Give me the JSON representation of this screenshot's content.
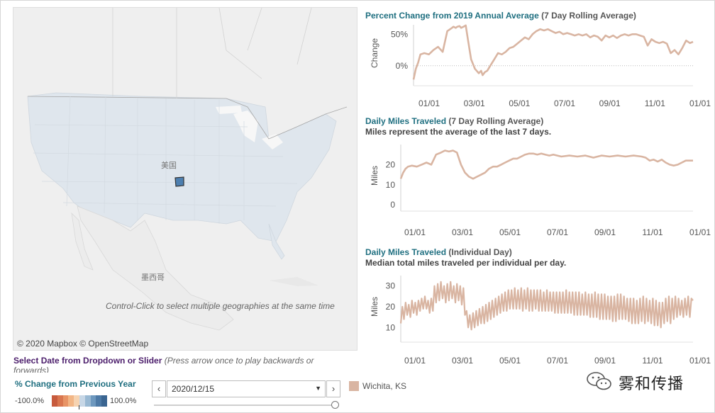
{
  "map": {
    "country_label": "美国",
    "mexico_label": "墨西哥",
    "hint": "Control-Click to select multiple geographies at the same time",
    "attribution": "© 2020 Mapbox  © OpenStreetMap"
  },
  "charts": {
    "pct": {
      "title_main": "Percent Change from 2019 Annual Average",
      "title_sub": " (7 Day Rolling Average)",
      "ylabel": "Change"
    },
    "miles7": {
      "title_main": "Daily Miles Traveled",
      "title_sub": " (7 Day Rolling Average)",
      "subtitle": "Miles represent the average of the last 7 days.",
      "ylabel": "Miles"
    },
    "milesDay": {
      "title_main": "Daily Miles Traveled",
      "title_sub": " (Individual Day)",
      "subtitle": "Median total miles traveled per individual per day.",
      "ylabel": "Miles"
    }
  },
  "chart_data": [
    {
      "type": "line",
      "title": "Percent Change from 2019 Annual Average (7 Day Rolling Average)",
      "ylabel": "Change",
      "ylim": [
        -25,
        65
      ],
      "yticks": [
        0,
        50
      ],
      "ytick_labels": [
        "0%",
        "50%"
      ],
      "x_tick_labels": [
        "01/01",
        "03/01",
        "05/01",
        "07/01",
        "09/01",
        "11/01",
        "01/01"
      ],
      "line_color": "#d9b5a2",
      "x": [
        0,
        3,
        6,
        9,
        14,
        20,
        26,
        32,
        38,
        44,
        50,
        52,
        55,
        57,
        60,
        62,
        65,
        68,
        71,
        75,
        80,
        85,
        88,
        90,
        93,
        96,
        100,
        105,
        110,
        115,
        120,
        125,
        130,
        135,
        140,
        145,
        150,
        155,
        160,
        165,
        170,
        175,
        180,
        185,
        190,
        195,
        200,
        205,
        210,
        215,
        220,
        225,
        230,
        235,
        240,
        245,
        250,
        255,
        260,
        265,
        270,
        275,
        280,
        285,
        290,
        295,
        300,
        305,
        310,
        315,
        320,
        325,
        330,
        335,
        340,
        345,
        350,
        355,
        360,
        364
      ],
      "y": [
        -22,
        -5,
        5,
        18,
        20,
        18,
        25,
        30,
        22,
        55,
        60,
        62,
        60,
        62,
        63,
        60,
        62,
        64,
        40,
        10,
        -5,
        -12,
        -8,
        -15,
        -10,
        -8,
        0,
        10,
        20,
        18,
        22,
        28,
        30,
        35,
        40,
        45,
        42,
        50,
        55,
        58,
        56,
        58,
        55,
        52,
        54,
        50,
        52,
        50,
        48,
        50,
        48,
        50,
        45,
        48,
        46,
        40,
        48,
        45,
        48,
        44,
        48,
        50,
        48,
        50,
        50,
        48,
        46,
        32,
        42,
        38,
        36,
        38,
        35,
        20,
        25,
        18,
        28,
        40,
        36,
        38
      ]
    },
    {
      "type": "line",
      "title": "Daily Miles Traveled (7 Day Rolling Average)",
      "ylabel": "Miles",
      "ylim": [
        -1,
        30
      ],
      "yticks": [
        0,
        10,
        20
      ],
      "x_tick_labels": [
        "01/01",
        "03/01",
        "05/01",
        "07/01",
        "09/01",
        "11/01",
        "01/01"
      ],
      "line_color": "#d9b5a2",
      "x": [
        0,
        3,
        6,
        9,
        14,
        20,
        26,
        32,
        38,
        44,
        50,
        55,
        60,
        65,
        70,
        75,
        80,
        85,
        90,
        95,
        100,
        105,
        110,
        115,
        120,
        125,
        130,
        135,
        140,
        145,
        150,
        155,
        160,
        165,
        170,
        175,
        180,
        185,
        190,
        195,
        200,
        210,
        220,
        230,
        240,
        250,
        260,
        270,
        280,
        290,
        300,
        305,
        310,
        315,
        320,
        325,
        330,
        335,
        340,
        345,
        350,
        355,
        360,
        364
      ],
      "y": [
        13,
        16,
        18,
        19,
        19.5,
        19,
        20,
        21,
        20,
        25,
        26,
        27,
        26.5,
        27,
        26,
        20,
        16,
        14,
        13,
        14,
        15,
        16,
        18,
        19,
        19,
        20,
        21,
        22,
        23,
        23,
        24,
        25,
        25.5,
        25.5,
        25,
        25.5,
        25,
        24.5,
        25,
        24.5,
        24,
        24.5,
        24,
        24.5,
        23.5,
        24.5,
        24,
        24.5,
        24,
        24.5,
        24,
        23.5,
        22,
        22.5,
        21.5,
        22.5,
        21,
        20,
        19.5,
        20,
        21,
        22,
        22,
        22
      ]
    },
    {
      "type": "line",
      "title": "Daily Miles Traveled (Individual Day)",
      "ylabel": "Miles",
      "ylim": [
        5,
        35
      ],
      "yticks": [
        10,
        20,
        30
      ],
      "x_tick_labels": [
        "01/01",
        "03/01",
        "05/01",
        "07/01",
        "09/01",
        "11/01",
        "01/01"
      ],
      "line_color": "#d9b5a2",
      "x": [
        0,
        2,
        4,
        6,
        8,
        10,
        12,
        14,
        16,
        18,
        20,
        22,
        24,
        26,
        28,
        30,
        32,
        34,
        36,
        38,
        40,
        42,
        44,
        46,
        48,
        50,
        52,
        54,
        56,
        58,
        60,
        62,
        64,
        66,
        68,
        70,
        72,
        74,
        76,
        78,
        80,
        82,
        84,
        86,
        88,
        90,
        92,
        94,
        96,
        98,
        100,
        102,
        104,
        106,
        108,
        110,
        112,
        114,
        116,
        118,
        120,
        122,
        124,
        126,
        128,
        130,
        132,
        134,
        136,
        138,
        140,
        142,
        144,
        146,
        148,
        150,
        152,
        154,
        156,
        158,
        160,
        162,
        164,
        166,
        168,
        170,
        172,
        174,
        176,
        178,
        180,
        182,
        184,
        186,
        188,
        190,
        192,
        194,
        196,
        198,
        200,
        202,
        204,
        206,
        208,
        210,
        212,
        214,
        216,
        218,
        220,
        222,
        224,
        226,
        228,
        230,
        232,
        234,
        236,
        238,
        240,
        242,
        244,
        246,
        248,
        250,
        252,
        254,
        256,
        258,
        260,
        262,
        264,
        266,
        268,
        270,
        272,
        274,
        276,
        278,
        280,
        282,
        284,
        286,
        288,
        290,
        292,
        294,
        296,
        298,
        300,
        302,
        304,
        306,
        308,
        310,
        312,
        314,
        316,
        318,
        320,
        322,
        324,
        326,
        328,
        330,
        332,
        334,
        336,
        338,
        340,
        342,
        344,
        346,
        348,
        350,
        352,
        354,
        356,
        358,
        360,
        362,
        364
      ],
      "y": [
        12,
        20,
        14,
        22,
        16,
        21,
        15,
        23,
        17,
        22,
        16,
        23,
        18,
        24,
        19,
        25,
        19,
        23,
        17,
        24,
        18,
        30,
        22,
        31,
        23,
        32,
        24,
        30,
        22,
        31,
        23,
        32,
        24,
        30,
        22,
        31,
        23,
        30,
        21,
        29,
        16,
        18,
        10,
        16,
        9,
        17,
        10,
        18,
        11,
        19,
        12,
        20,
        12,
        21,
        13,
        22,
        14,
        23,
        15,
        24,
        16,
        25,
        17,
        26,
        18,
        27,
        18,
        28,
        19,
        28,
        19,
        29,
        19,
        28,
        19,
        29,
        18,
        28,
        19,
        29,
        18,
        28,
        18,
        28,
        19,
        28,
        18,
        28,
        18,
        27,
        18,
        28,
        18,
        27,
        18,
        27,
        17,
        27,
        17,
        27,
        17,
        27,
        17,
        28,
        17,
        27,
        17,
        27,
        16,
        27,
        16,
        27,
        16,
        26,
        16,
        27,
        16,
        26,
        15,
        26,
        15,
        27,
        15,
        26,
        14,
        26,
        14,
        26,
        14,
        25,
        14,
        25,
        13,
        25,
        13,
        26,
        14,
        26,
        14,
        25,
        14,
        24,
        13,
        24,
        12,
        24,
        12,
        23,
        12,
        24,
        13,
        25,
        12,
        24,
        13,
        23,
        12,
        24,
        11,
        23,
        11,
        22,
        10,
        22,
        12,
        24,
        13,
        25,
        12,
        24,
        14,
        25,
        15,
        24,
        16,
        23,
        15,
        24,
        16,
        25,
        15,
        24,
        23
      ]
    }
  ],
  "controls": {
    "select_date_bold": "Select Date from Dropdown or Slider",
    "select_date_hint": " (Press arrow once to play backwards or",
    "select_date_hint2": "forwards)",
    "pct_title": "% Change from Previous Year",
    "scale_min": "-100.0%",
    "scale_max": "100.0%",
    "prev_glyph": "‹",
    "next_glyph": "›",
    "date_value": "2020/12/15",
    "dropdown_glyph": "▼",
    "legend_label": "Wichita, KS",
    "line_color": "#d9b5a2"
  },
  "scale_colors": [
    "#c75b3d",
    "#d9764f",
    "#e89466",
    "#f2b686",
    "#f6d3b1",
    "#c7d7e6",
    "#99b9d3",
    "#6d98be",
    "#4d7aa6",
    "#3a6591"
  ],
  "watermark": {
    "text": "雾和传播"
  }
}
